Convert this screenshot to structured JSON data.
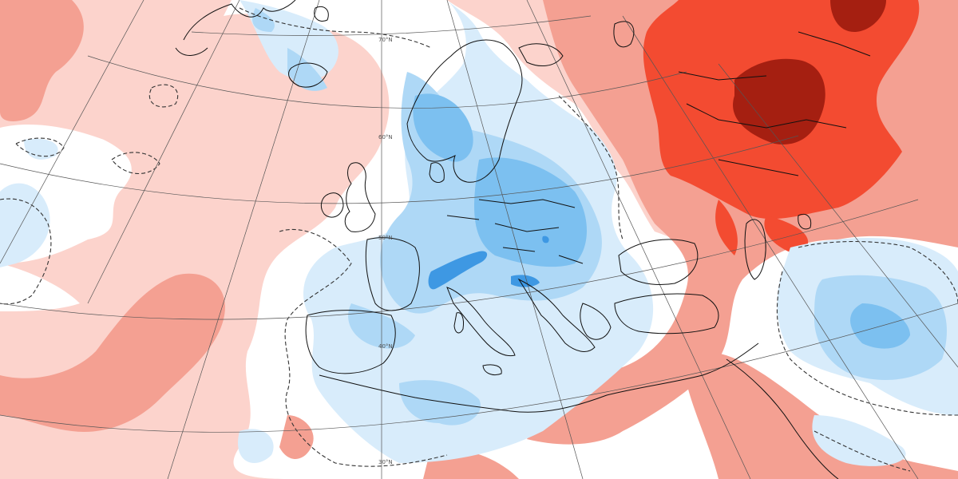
{
  "map": {
    "palette": {
      "warm_light": "#fcd3cc",
      "warm_medium": "#f4a092",
      "warm_strong": "#f34b31",
      "warm_extreme": "#a51f11",
      "cool_light": "#d8ecfb",
      "cool_medium": "#aed8f6",
      "cool_strong": "#7cc0f0",
      "cool_deep": "#3e98e3",
      "neutral": "#ffffff",
      "coastline": "#111111",
      "graticule": "#555555"
    },
    "latitude_labels": [
      "70°N",
      "60°N",
      "50°N",
      "40°N",
      "30°N"
    ],
    "contours": {
      "dashed_zero_line": true
    }
  }
}
